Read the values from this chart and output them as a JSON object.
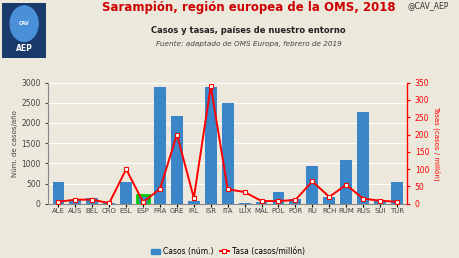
{
  "categories": [
    "ALE",
    "AUS",
    "BEL",
    "CRO",
    "ESL",
    "ESP",
    "FRA",
    "GRE",
    "IRL",
    "ISR",
    "ITA",
    "LUX",
    "MAL",
    "POL",
    "POR",
    "RU",
    "RCH",
    "RUM",
    "RUS",
    "SUI",
    "TUR"
  ],
  "casos": [
    540,
    100,
    135,
    10,
    550,
    220,
    2900,
    2180,
    80,
    2900,
    2500,
    20,
    40,
    300,
    110,
    940,
    160,
    1080,
    2260,
    75,
    540
  ],
  "tasas": [
    6,
    12,
    12,
    2,
    100,
    5,
    43,
    200,
    17,
    340,
    42,
    34,
    8,
    8,
    11,
    65,
    20,
    55,
    15,
    9,
    6
  ],
  "bar_color": "#3A86C8",
  "line_color": "#FF0000",
  "marker_color": "#FFFFFF",
  "esp_box_color": "#00CC00",
  "bg_color": "#EDE8DC",
  "title": "Sarampión, región europea de la OMS, 2018",
  "subtitle": "Casos y tasas, países de nuestro entorno",
  "source": "Fuente: adaptado de OMS Europa, febrero de 2019",
  "twitter": "@CAV_AEP",
  "ylabel_left": "Núm. de casos/año",
  "ylabel_right": "Tasas (casos / millón)",
  "ylim_left": [
    0,
    3000
  ],
  "ylim_right": [
    0,
    350
  ],
  "legend_casos": "Casos (núm.)",
  "legend_tasa": "Tasa (casos/millón)",
  "title_color": "#CC0000",
  "subtitle_color": "#222222",
  "source_color": "#444444",
  "tick_color": "#444444",
  "esp_index": 5,
  "logo_bg": "#1A3A6B",
  "logo_text_color": "#FFFFFF",
  "logo_circle_color": "#4A90D9"
}
